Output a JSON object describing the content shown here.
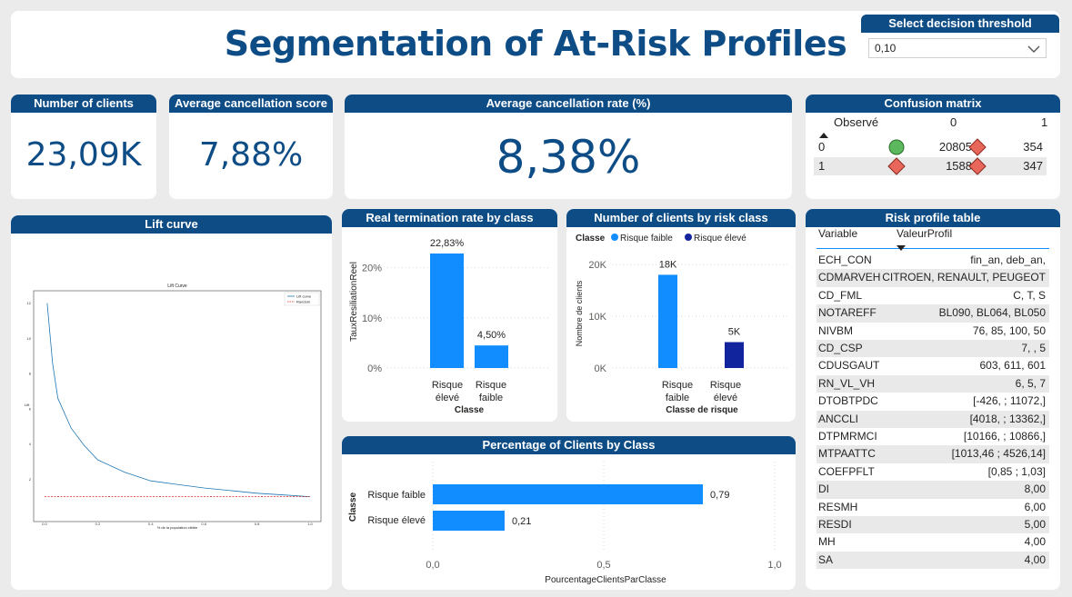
{
  "title": "Segmentation of At-Risk Profiles",
  "threshold": {
    "label": "Select decision threshold",
    "value": "0,10"
  },
  "kpis": {
    "clients": {
      "label": "Number of clients",
      "value": "23,09K"
    },
    "avg_score": {
      "label": "Average cancellation score",
      "value": "7,88%"
    },
    "avg_rate": {
      "label": "Average cancellation rate (%)",
      "value": "8,38%"
    }
  },
  "confusion": {
    "title": "Confusion matrix",
    "header": "Observé",
    "col0": "0",
    "col1": "1",
    "rows": [
      {
        "label": "0",
        "v0": "20805",
        "v1": "354"
      },
      {
        "label": "1",
        "v0": "1588",
        "v1": "347"
      }
    ]
  },
  "lift": {
    "title": "Lift curve",
    "inner_title": "Lift Curve",
    "legend": [
      "Lift curve",
      "Random"
    ],
    "xlabel": "% de la population ciblée",
    "ylabel": "Lift",
    "yticks": [
      "12",
      "10",
      "8",
      "6",
      "4",
      "2"
    ],
    "xticks": [
      "0.0",
      "0.2",
      "0.4",
      "0.6",
      "0.8",
      "1.0"
    ]
  },
  "real_rate": {
    "title": "Real termination rate by class",
    "ylabel": "TauxResiliationReel",
    "xlabel": "Classe",
    "yticks": [
      "20%",
      "10%",
      "0%"
    ],
    "cat0a": "Risque",
    "cat0b": "élevé",
    "cat1a": "Risque",
    "cat1b": "faible",
    "labels": [
      "22,83%",
      "4,50%"
    ]
  },
  "risk_count": {
    "title": "Number of clients by risk class",
    "legend_title": "Classe",
    "legend": [
      "Risque faible",
      "Risque élevé"
    ],
    "ylabel": "Nombre de clients",
    "xlabel": "Classe de risque",
    "yticks": [
      "20K",
      "10K",
      "0K"
    ],
    "cat0a": "Risque",
    "cat0b": "faible",
    "cat1a": "Risque",
    "cat1b": "élevé",
    "labels": [
      "18K",
      "5K"
    ]
  },
  "pct": {
    "title": "Percentage of Clients by Class",
    "ylabel": "Classe",
    "xlabel": "PourcentageClientsParClasse",
    "cats": [
      "Risque faible",
      "Risque élevé"
    ],
    "labels": [
      "0,79",
      "0,21"
    ],
    "xticks": [
      "0,0",
      "0,5",
      "1,0"
    ]
  },
  "profile_table": {
    "title": "Risk profile table",
    "col_variable": "Variable",
    "col_value": "ValeurProfil",
    "rows": [
      {
        "v": "ECH_CON",
        "p": "fin_an, deb_an,"
      },
      {
        "v": "CDMARVEH",
        "p": "CITROEN, RENAULT, PEUGEOT"
      },
      {
        "v": "CD_FML",
        "p": "C, T, S"
      },
      {
        "v": "NOTAREFF",
        "p": "BL090, BL064, BL050"
      },
      {
        "v": "NIVBM",
        "p": "76, 85, 100, 50"
      },
      {
        "v": "CD_CSP",
        "p": "7, , 5"
      },
      {
        "v": "CDUSGAUT",
        "p": "603, 611, 601"
      },
      {
        "v": "RN_VL_VH",
        "p": "6, 5, 7"
      },
      {
        "v": "DTOBTPDC",
        "p": "[-426, ; 11072,]"
      },
      {
        "v": "ANCCLI",
        "p": "[4018, ; 13362,]"
      },
      {
        "v": "DTPMRMCI",
        "p": "[10166, ; 10866,]"
      },
      {
        "v": "MTPAATTC",
        "p": "[1013,46 ; 4526,14]"
      },
      {
        "v": "COEFPFLT",
        "p": "[0,85 ; 1,03]"
      },
      {
        "v": "DI",
        "p": "8,00"
      },
      {
        "v": "RESMH",
        "p": "6,00"
      },
      {
        "v": "RESDI",
        "p": "5,00"
      },
      {
        "v": "MH",
        "p": "4,00"
      },
      {
        "v": "SA",
        "p": "4,00"
      }
    ]
  },
  "chart_data": [
    {
      "type": "bar",
      "title": "Real termination rate by class",
      "categories": [
        "Risque élevé",
        "Risque faible"
      ],
      "values": [
        22.83,
        4.5
      ],
      "xlabel": "Classe",
      "ylabel": "TauxResiliationReel",
      "ylim": [
        0,
        25
      ]
    },
    {
      "type": "bar",
      "title": "Number of clients by risk class",
      "categories": [
        "Risque faible",
        "Risque élevé"
      ],
      "values": [
        18000,
        5000
      ],
      "xlabel": "Classe de risque",
      "ylabel": "Nombre de clients",
      "ylim": [
        0,
        22000
      ]
    },
    {
      "type": "bar",
      "title": "Percentage of Clients by Class",
      "categories": [
        "Risque faible",
        "Risque élevé"
      ],
      "values": [
        0.79,
        0.21
      ],
      "xlabel": "PourcentageClientsParClasse",
      "ylabel": "Classe",
      "xlim": [
        0,
        1
      ]
    },
    {
      "type": "line",
      "title": "Lift Curve",
      "xlabel": "% de la population ciblée",
      "ylabel": "Lift",
      "xlim": [
        0,
        1
      ],
      "ylim": [
        0,
        12.5
      ],
      "series": [
        {
          "name": "Lift curve",
          "x": [
            0.01,
            0.03,
            0.05,
            0.1,
            0.15,
            0.2,
            0.3,
            0.4,
            0.5,
            0.6,
            0.7,
            0.8,
            0.9,
            1.0
          ],
          "y": [
            12,
            8.6,
            6.6,
            4.9,
            3.9,
            3.1,
            2.4,
            1.9,
            1.7,
            1.5,
            1.35,
            1.2,
            1.1,
            1.0
          ]
        },
        {
          "name": "Random",
          "x": [
            0,
            1
          ],
          "y": [
            1,
            1
          ]
        }
      ]
    }
  ]
}
